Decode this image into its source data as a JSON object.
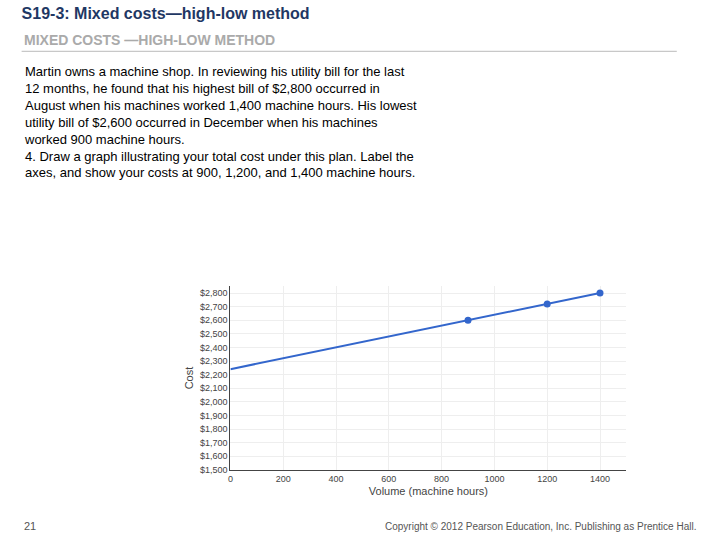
{
  "chart_data": {
    "type": "line",
    "title": "S19-3: Mixed costs—high-low method",
    "subtitle": "MIXED COSTS —HIGH-LOW METHOD",
    "annotations": [
      "Martin owns a machine shop. In reviewing his utility bill for the last\n12 months, he found that his highest bill of $2,800 occurred in\nAugust when his machines worked 1,400 machine hours. His lowest\nutility bill of $2,600 occurred in December when his machines\nworked 900 machine hours.\n4. Draw a graph illustrating your total cost under this plan. Label the\naxes, and show your costs at 900, 1,200, and 1,400 machine hours.",
      "21",
      "Copyright © 2012 Pearson Education, Inc. Publishing as Prentice Hall."
    ],
    "x_label": "Volume (machine hours)",
    "y_label": "Cost",
    "x": [
      0,
      900,
      1200,
      1400
    ],
    "series": [
      {
        "type": "line",
        "color": "#3366cc",
        "values": [
          2240,
          2600,
          2720,
          2800
        ]
      },
      {
        "type": "scatter",
        "color": "#3366cc",
        "values": [
          null,
          2600,
          2720,
          2800
        ]
      }
    ],
    "xlim": [
      0,
      1500
    ],
    "ylim": [
      1500,
      2850
    ],
    "xticks": [
      0,
      200,
      400,
      600,
      800,
      1000,
      1200,
      1400
    ],
    "yticks": [
      {
        "value": 1500,
        "label": "$1,500"
      },
      {
        "value": 1600,
        "label": "$1,600"
      },
      {
        "value": 1700,
        "label": "$1,700"
      },
      {
        "value": 1800,
        "label": "$1,800"
      },
      {
        "value": 1900,
        "label": "$1,900"
      },
      {
        "value": 2000,
        "label": "$2,000"
      },
      {
        "value": 2100,
        "label": "$2,100"
      },
      {
        "value": 2200,
        "label": "$2,200"
      },
      {
        "value": 2300,
        "label": "$2,300"
      },
      {
        "value": 2400,
        "label": "$2,400"
      },
      {
        "value": 2500,
        "label": "$2,500"
      },
      {
        "value": 2600,
        "label": "$2,600"
      },
      {
        "value": 2700,
        "label": "$2,700"
      },
      {
        "value": 2800,
        "label": "$2,800"
      }
    ],
    "grid": true
  }
}
